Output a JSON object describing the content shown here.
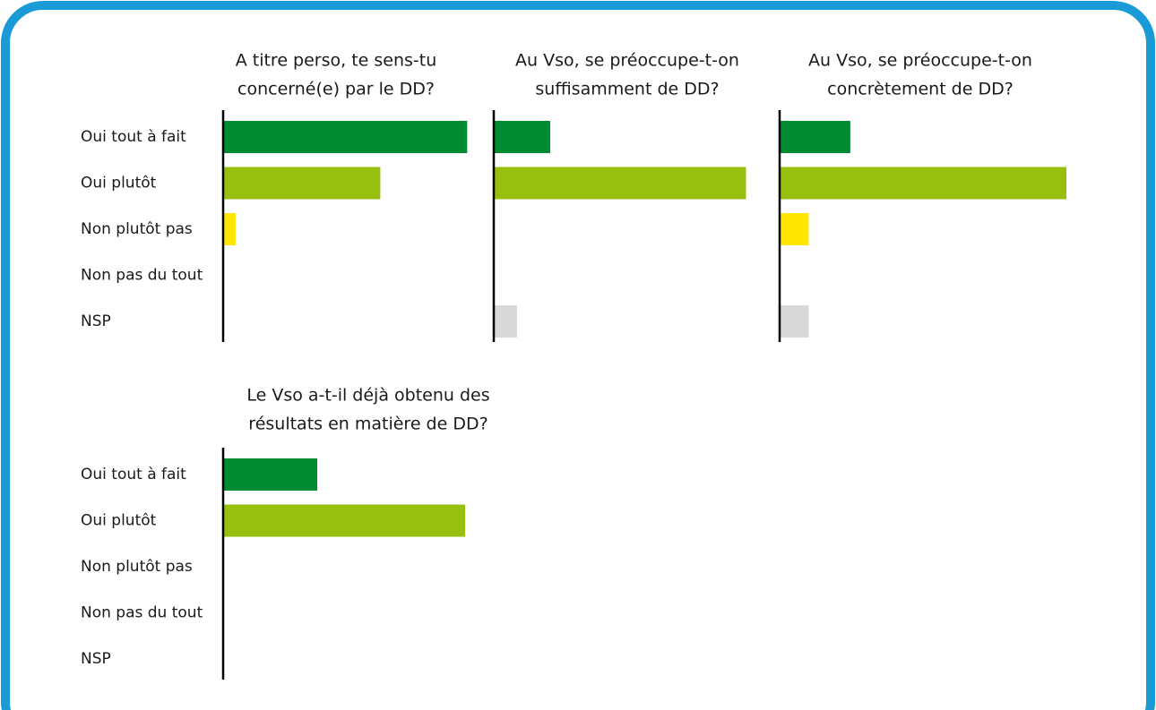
{
  "chart_data": [
    {
      "type": "bar",
      "orientation": "horizontal",
      "title": [
        "A titre perso, te sens-tu",
        "concerné(e) par le DD?"
      ],
      "categories": [
        "Oui tout à fait",
        "Oui plutôt",
        "Non plutôt pas",
        "Non pas du tout",
        "NSP"
      ],
      "values": [
        59,
        38,
        3,
        0,
        0
      ],
      "colors": [
        "#008a32",
        "#97bf0d",
        "#ffe600",
        null,
        "#d9d9d9"
      ],
      "xlim": [
        0,
        65
      ]
    },
    {
      "type": "bar",
      "orientation": "horizontal",
      "title": [
        "Au Vso, se préoccupe-t-on",
        "suffisamment de DD?"
      ],
      "values": [
        17,
        76,
        0,
        0,
        7
      ],
      "colors": [
        "#008a32",
        "#97bf0d",
        "#ffe600",
        null,
        "#d9d9d9"
      ],
      "xlim": [
        0,
        81
      ]
    },
    {
      "type": "bar",
      "orientation": "horizontal",
      "title": [
        "Au Vso, se préoccupe-t-on",
        "concrètement de DD?"
      ],
      "values": [
        17,
        69,
        7,
        0,
        7
      ],
      "colors": [
        "#008a32",
        "#97bf0d",
        "#ffe600",
        null,
        "#d9d9d9"
      ],
      "xlim": [
        0,
        69
      ]
    },
    {
      "type": "bar",
      "orientation": "horizontal",
      "title": [
        "Le Vso a-t-il déjà obtenu des",
        "résultats en matière de DD?"
      ],
      "categories": [
        "Oui tout à fait",
        "Oui plutôt",
        "Non plutôt pas",
        "Non pas du tout",
        "NSP"
      ],
      "values": [
        28,
        72,
        0,
        0,
        0
      ],
      "colors": [
        "#008a32",
        "#97bf0d",
        "#ffe600",
        null,
        "#d9d9d9"
      ],
      "xlim": [
        0,
        80
      ]
    }
  ]
}
